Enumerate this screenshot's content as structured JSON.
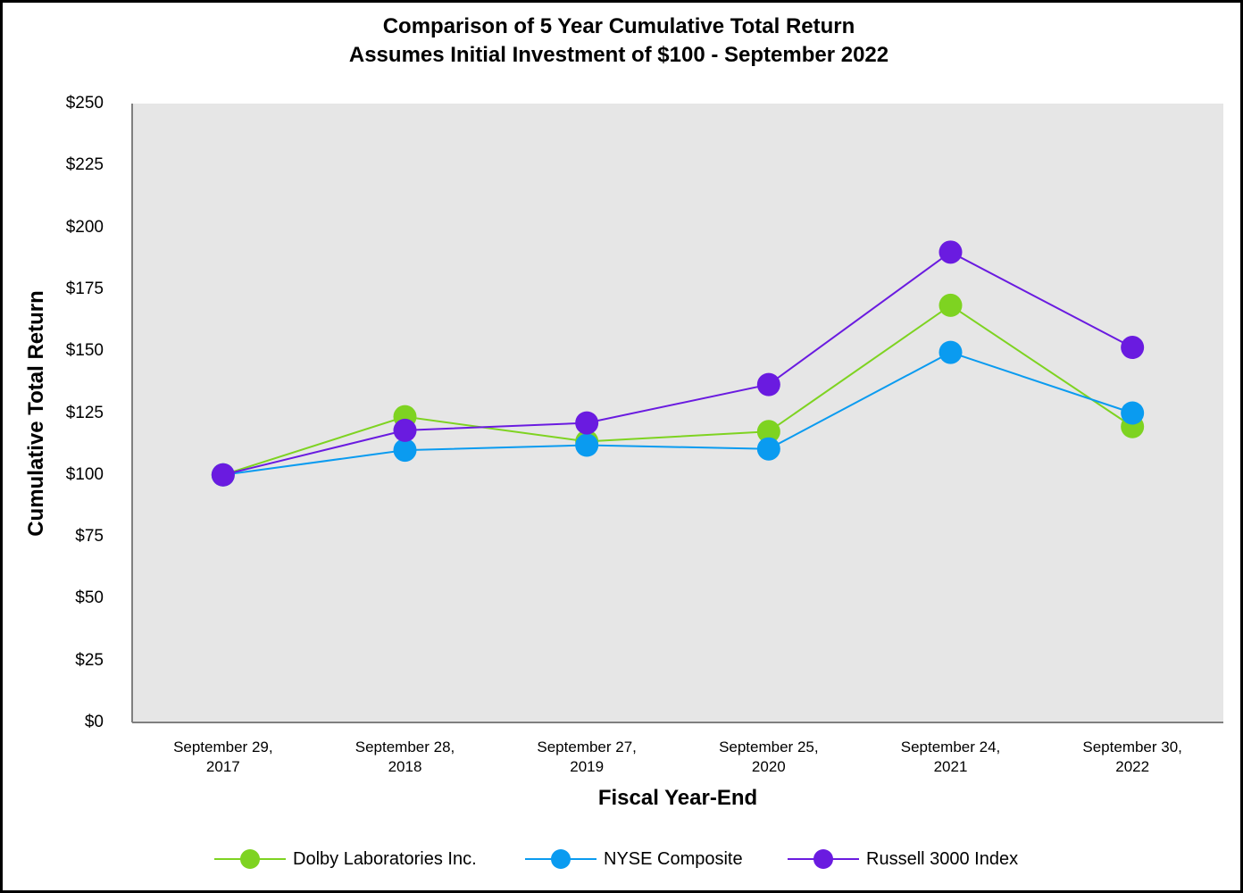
{
  "chart_data": {
    "type": "line",
    "title": "Comparison of 5 Year Cumulative Total Return",
    "subtitle": "Assumes Initial Investment of $100 - September 2022",
    "xlabel": "Fiscal Year-End",
    "ylabel": "Cumulative Total Return",
    "ylim": [
      0,
      250
    ],
    "yticks": [
      {
        "value": 250,
        "label": "$250"
      },
      {
        "value": 225,
        "label": "$225"
      },
      {
        "value": 200,
        "label": "$200"
      },
      {
        "value": 175,
        "label": "$175"
      },
      {
        "value": 150,
        "label": "$150"
      },
      {
        "value": 125,
        "label": "$125"
      },
      {
        "value": 100,
        "label": "$100"
      },
      {
        "value": 75,
        "label": "$75"
      },
      {
        "value": 50,
        "label": "$50"
      },
      {
        "value": 25,
        "label": "$25"
      },
      {
        "value": 0,
        "label": "$0"
      }
    ],
    "categories": [
      {
        "line1": "September 29,",
        "line2": "2017"
      },
      {
        "line1": "September 28,",
        "line2": "2018"
      },
      {
        "line1": "September 27,",
        "line2": "2019"
      },
      {
        "line1": "September 25,",
        "line2": "2020"
      },
      {
        "line1": "September 24,",
        "line2": "2021"
      },
      {
        "line1": "September 30,",
        "line2": "2022"
      }
    ],
    "series": [
      {
        "name": "Dolby Laboratories Inc.",
        "color": "#7ED321",
        "values": [
          100,
          123.5,
          113.5,
          117.5,
          168.5,
          119.5
        ]
      },
      {
        "name": "NYSE Composite",
        "color": "#0A9BF0",
        "values": [
          100,
          110,
          112,
          110.5,
          149.5,
          125
        ]
      },
      {
        "name": "Russell 3000 Index",
        "color": "#6A1BE0",
        "values": [
          100,
          118,
          121,
          136.5,
          190,
          151.5
        ]
      }
    ],
    "plot_background": "#E6E6E6",
    "grid": false,
    "legend_position": "bottom"
  }
}
